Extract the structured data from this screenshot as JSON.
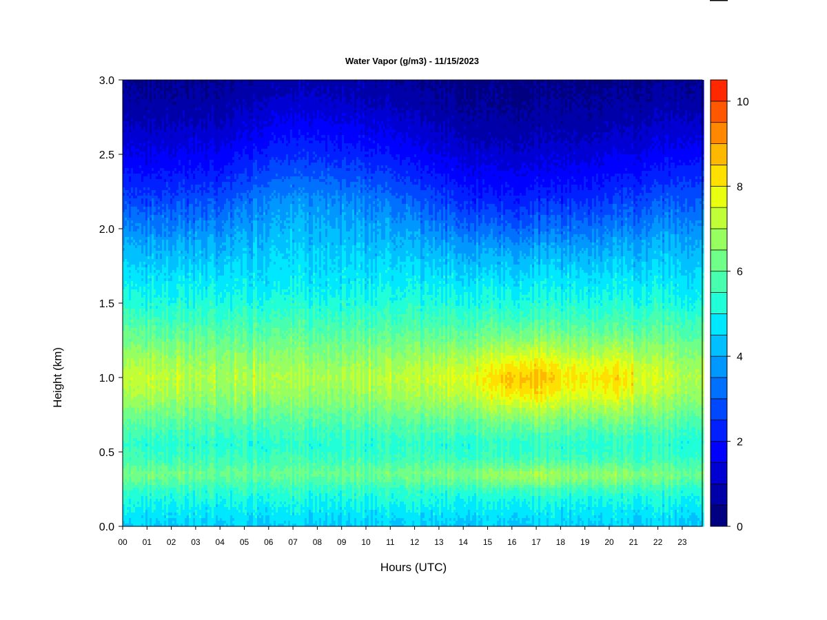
{
  "chart_data": {
    "type": "heatmap",
    "title": "Water Vapor (g/m3) - 11/15/2023",
    "xlabel": "Hours (UTC)",
    "ylabel": "Height (km)",
    "x_ticks": [
      "00",
      "01",
      "02",
      "03",
      "04",
      "05",
      "06",
      "07",
      "08",
      "09",
      "10",
      "11",
      "12",
      "13",
      "14",
      "15",
      "16",
      "17",
      "18",
      "19",
      "20",
      "21",
      "22",
      "23"
    ],
    "xlim": [
      0,
      23.85
    ],
    "y_ticks": [
      "0.0",
      "0.5",
      "1.0",
      "1.5",
      "2.0",
      "2.5",
      "3.0"
    ],
    "ylim": [
      0,
      3.0
    ],
    "colorbar": {
      "ticks": [
        "0",
        "2",
        "4",
        "6",
        "8",
        "10"
      ],
      "range": [
        0,
        10.5
      ],
      "step": 0.5,
      "colors": [
        "#000080",
        "#0000a8",
        "#0000d2",
        "#0000ff",
        "#0020ff",
        "#0048ff",
        "#0070ff",
        "#0098ff",
        "#00c0ff",
        "#00e8ff",
        "#20ffd8",
        "#48ffb0",
        "#70ff88",
        "#98ff60",
        "#c0ff38",
        "#e8ff10",
        "#ffe000",
        "#ffb800",
        "#ff8800",
        "#ff5800",
        "#ff2800",
        "#e80000",
        "#b80000",
        "#880000"
      ]
    },
    "profile": {
      "heights_km": [
        0.0,
        0.05,
        0.15,
        0.25,
        0.35,
        0.45,
        0.55,
        0.7,
        0.85,
        1.0,
        1.15,
        1.3,
        1.5,
        1.7,
        1.9,
        2.1,
        2.3,
        2.5,
        2.7,
        2.85,
        3.0
      ],
      "values": [
        4.4,
        4.6,
        5.0,
        5.4,
        6.1,
        5.6,
        5.3,
        5.8,
        6.4,
        6.8,
        6.4,
        5.9,
        5.2,
        4.6,
        3.9,
        3.0,
        2.2,
        1.5,
        0.9,
        0.6,
        0.4
      ]
    },
    "enhancement": {
      "hours": [
        0,
        1,
        2,
        4,
        6,
        9,
        11,
        13,
        14,
        15,
        16,
        17,
        18,
        19,
        20,
        21,
        22,
        23,
        23.85
      ],
      "values": [
        0.3,
        0.6,
        0.4,
        0.1,
        0.2,
        0.2,
        0.3,
        0.6,
        0.9,
        1.2,
        1.9,
        1.8,
        1.3,
        1.3,
        1.4,
        1.0,
        0.6,
        0.4,
        0.3
      ]
    },
    "upper_shift": {
      "hours": [
        0,
        4,
        6,
        8,
        11,
        13,
        15,
        17,
        19,
        21,
        23,
        23.85
      ],
      "values_km": [
        0.0,
        0.05,
        0.22,
        0.25,
        0.15,
        0.0,
        -0.1,
        -0.1,
        -0.05,
        0.0,
        0.1,
        0.1
      ]
    }
  }
}
